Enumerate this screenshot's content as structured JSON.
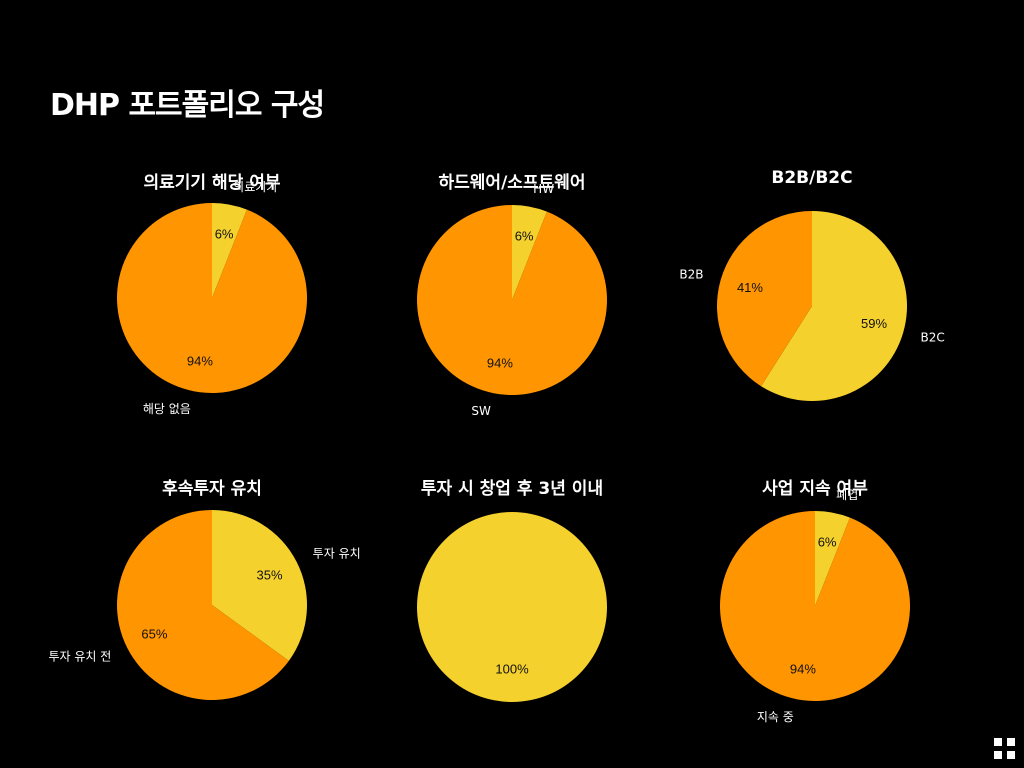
{
  "page": {
    "title": "DHP 포트폴리오 구성"
  },
  "colors": {
    "orange": "#FF9500",
    "yellow": "#F5D12D",
    "background": "#000000"
  },
  "chart_data": [
    {
      "type": "pie",
      "title": "의료기기 해당 여부",
      "slices": [
        {
          "label": "의료기기",
          "value": 6,
          "value_label": "6%",
          "color": "#F5D12D"
        },
        {
          "label": "해당 없음",
          "value": 94,
          "value_label": "94%",
          "color": "#FF9500"
        }
      ]
    },
    {
      "type": "pie",
      "title": "하드웨어/소프트웨어",
      "slices": [
        {
          "label": "HW",
          "value": 6,
          "value_label": "6%",
          "color": "#F5D12D"
        },
        {
          "label": "SW",
          "value": 94,
          "value_label": "94%",
          "color": "#FF9500"
        }
      ]
    },
    {
      "type": "pie",
      "title": "B2B/B2C",
      "slices": [
        {
          "label": "B2C",
          "value": 59,
          "value_label": "59%",
          "color": "#F5D12D"
        },
        {
          "label": "B2B",
          "value": 41,
          "value_label": "41%",
          "color": "#FF9500"
        }
      ]
    },
    {
      "type": "pie",
      "title": "후속투자 유치",
      "slices": [
        {
          "label": "투자 유치",
          "value": 35,
          "value_label": "35%",
          "color": "#F5D12D"
        },
        {
          "label": "투자 유치 전",
          "value": 65,
          "value_label": "65%",
          "color": "#FF9500"
        }
      ]
    },
    {
      "type": "pie",
      "title": "투자 시 창업 후 3년 이내",
      "slices": [
        {
          "label": "",
          "value": 100,
          "value_label": "100%",
          "color": "#F5D12D"
        }
      ]
    },
    {
      "type": "pie",
      "title": "사업 지속 여부",
      "slices": [
        {
          "label": "폐업",
          "value": 6,
          "value_label": "6%",
          "color": "#F5D12D"
        },
        {
          "label": "지속 중",
          "value": 94,
          "value_label": "94%",
          "color": "#FF9500"
        }
      ]
    }
  ],
  "footer": {
    "icon": "grid-icon"
  }
}
